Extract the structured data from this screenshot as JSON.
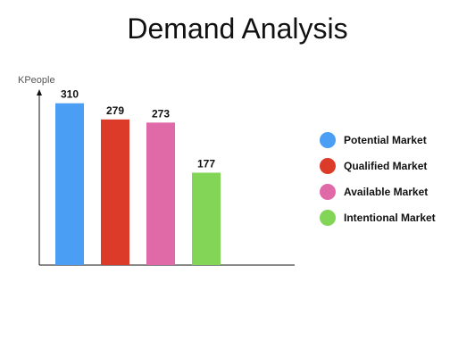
{
  "chart_data": {
    "type": "bar",
    "title": "Demand Analysis",
    "ylabel": "KPeople",
    "xlabel": "",
    "ylim": [
      0,
      330
    ],
    "grid": false,
    "legend_position": "right",
    "categories": [
      "Potential Market",
      "Qualified Market",
      "Available Market",
      "Intentional Market"
    ],
    "values": [
      310,
      279,
      273,
      177
    ],
    "colors": [
      "#4a9ff5",
      "#dc3b2a",
      "#e06aa8",
      "#82d557"
    ]
  }
}
